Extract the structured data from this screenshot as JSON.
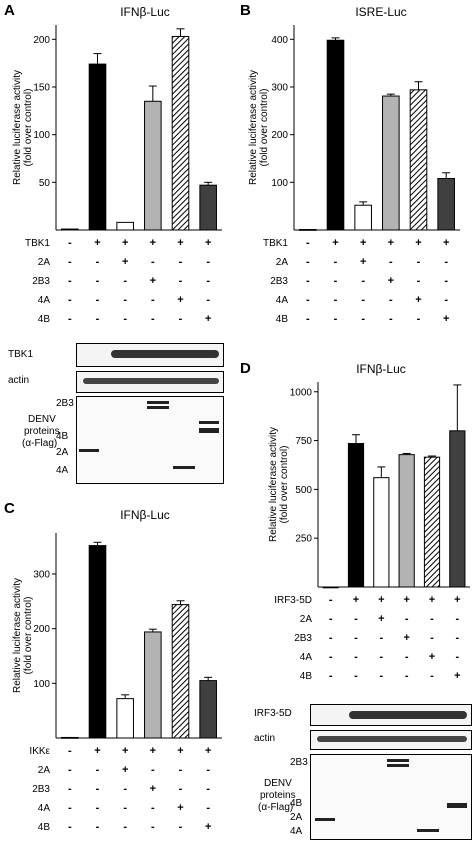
{
  "panels": [
    {
      "id": "A",
      "letter": "A",
      "title": "IFNβ-Luc",
      "ylabel": "Relative luciferase activity\n(fold over control)",
      "treatments": [
        {
          "label": "TBK1",
          "signs": [
            "-",
            "+",
            "+",
            "+",
            "+",
            "+"
          ]
        },
        {
          "label": "2A",
          "signs": [
            "-",
            "-",
            "+",
            "-",
            "-",
            "-"
          ]
        },
        {
          "label": "2B3",
          "signs": [
            "-",
            "-",
            "-",
            "+",
            "-",
            "-"
          ]
        },
        {
          "label": "4A",
          "signs": [
            "-",
            "-",
            "-",
            "-",
            "+",
            "-"
          ]
        },
        {
          "label": "4B",
          "signs": [
            "-",
            "-",
            "-",
            "-",
            "-",
            "+"
          ]
        }
      ],
      "blots": [
        {
          "label": "TBK1"
        },
        {
          "label": "actin"
        }
      ],
      "denv": {
        "lines": [
          "DENV",
          "proteins",
          "(α-Flag)"
        ],
        "markers": [
          "2B3",
          "4B",
          "2A",
          "4A"
        ]
      }
    },
    {
      "id": "B",
      "letter": "B",
      "title": "ISRE-Luc",
      "ylabel": "Relative luciferase activity\n(fold over control)",
      "treatments": [
        {
          "label": "TBK1",
          "signs": [
            "-",
            "+",
            "+",
            "+",
            "+",
            "+"
          ]
        },
        {
          "label": "2A",
          "signs": [
            "-",
            "-",
            "+",
            "-",
            "-",
            "-"
          ]
        },
        {
          "label": "2B3",
          "signs": [
            "-",
            "-",
            "-",
            "+",
            "-",
            "-"
          ]
        },
        {
          "label": "4A",
          "signs": [
            "-",
            "-",
            "-",
            "-",
            "+",
            "-"
          ]
        },
        {
          "label": "4B",
          "signs": [
            "-",
            "-",
            "-",
            "-",
            "-",
            "+"
          ]
        }
      ]
    },
    {
      "id": "C",
      "letter": "C",
      "title": "IFNβ-Luc",
      "ylabel": "Relative luciferase activity\n(fold over control)",
      "treatments": [
        {
          "label": "IKKε",
          "signs": [
            "-",
            "+",
            "+",
            "+",
            "+",
            "+"
          ]
        },
        {
          "label": "2A",
          "signs": [
            "-",
            "-",
            "+",
            "-",
            "-",
            "-"
          ]
        },
        {
          "label": "2B3",
          "signs": [
            "-",
            "-",
            "-",
            "+",
            "-",
            "-"
          ]
        },
        {
          "label": "4A",
          "signs": [
            "-",
            "-",
            "-",
            "-",
            "+",
            "-"
          ]
        },
        {
          "label": "4B",
          "signs": [
            "-",
            "-",
            "-",
            "-",
            "-",
            "+"
          ]
        }
      ]
    },
    {
      "id": "D",
      "letter": "D",
      "title": "IFNβ-Luc",
      "ylabel": "Relative luciferase activity\n(fold over control)",
      "treatments": [
        {
          "label": "IRF3-5D",
          "signs": [
            "-",
            "+",
            "+",
            "+",
            "+",
            "+"
          ]
        },
        {
          "label": "2A",
          "signs": [
            "-",
            "-",
            "+",
            "-",
            "-",
            "-"
          ]
        },
        {
          "label": "2B3",
          "signs": [
            "-",
            "-",
            "-",
            "+",
            "-",
            "-"
          ]
        },
        {
          "label": "4A",
          "signs": [
            "-",
            "-",
            "-",
            "-",
            "+",
            "-"
          ]
        },
        {
          "label": "4B",
          "signs": [
            "-",
            "-",
            "-",
            "-",
            "-",
            "+"
          ]
        }
      ],
      "blots": [
        {
          "label": "IRF3-5D"
        },
        {
          "label": "actin"
        }
      ],
      "denv": {
        "lines": [
          "DENV",
          "proteins",
          "(α-Flag)"
        ],
        "markers": [
          "2B3",
          "4B",
          "2A",
          "4A"
        ]
      }
    }
  ],
  "chart_data": [
    {
      "panel": "A",
      "type": "bar",
      "title": "IFNβ-Luc",
      "ylabel": "Relative luciferase activity (fold over control)",
      "ylim": [
        0,
        215
      ],
      "yticks": [
        50,
        100,
        150,
        200
      ],
      "values": [
        1,
        174,
        8,
        135,
        203,
        47
      ],
      "errors": [
        0,
        11,
        0,
        16,
        8,
        3
      ],
      "fills": [
        "#000000",
        "#000000",
        "#ffffff",
        "#b3b3b3",
        "hatch",
        "#404040"
      ]
    },
    {
      "panel": "B",
      "type": "bar",
      "title": "ISRE-Luc",
      "ylabel": "Relative luciferase activity (fold over control)",
      "ylim": [
        0,
        430
      ],
      "yticks": [
        100,
        200,
        300,
        400
      ],
      "values": [
        1,
        398,
        52,
        281,
        294,
        108
      ],
      "errors": [
        0,
        5,
        7,
        4,
        17,
        12
      ],
      "fills": [
        "#000000",
        "#000000",
        "#ffffff",
        "#b3b3b3",
        "hatch",
        "#404040"
      ]
    },
    {
      "panel": "C",
      "type": "bar",
      "title": "IFNβ-Luc",
      "ylabel": "Relative luciferase activity (fold over control)",
      "ylim": [
        0,
        375
      ],
      "yticks": [
        100,
        200,
        300
      ],
      "values": [
        1,
        352,
        72,
        194,
        244,
        105
      ],
      "errors": [
        0,
        6,
        7,
        5,
        7,
        6
      ],
      "fills": [
        "#000000",
        "#000000",
        "#ffffff",
        "#b3b3b3",
        "hatch",
        "#404040"
      ]
    },
    {
      "panel": "D",
      "type": "bar",
      "title": "IFNβ-Luc",
      "ylabel": "Relative luciferase activity (fold over control)",
      "ylim": [
        0,
        1050
      ],
      "yticks": [
        250,
        500,
        750,
        1000
      ],
      "values": [
        0,
        735,
        560,
        678,
        665,
        800
      ],
      "errors": [
        0,
        45,
        55,
        6,
        6,
        235
      ],
      "fills": [
        "#000000",
        "#000000",
        "#ffffff",
        "#b3b3b3",
        "hatch",
        "#404040"
      ]
    }
  ]
}
